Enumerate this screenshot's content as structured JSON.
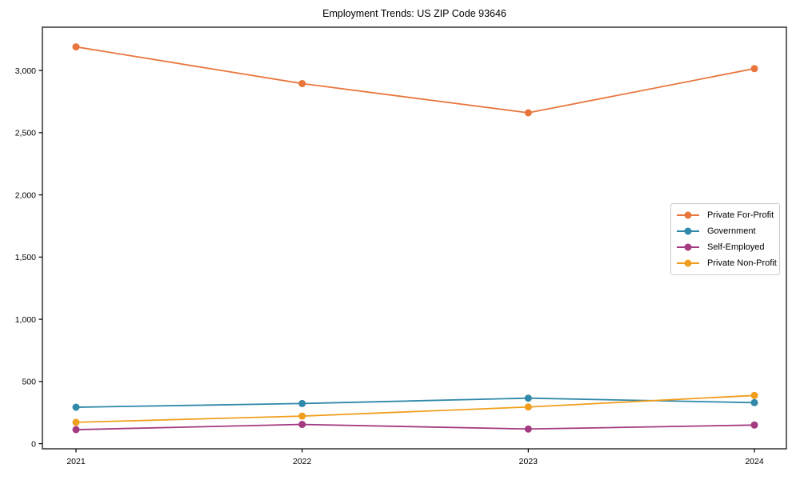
{
  "chart_data": {
    "type": "line",
    "title": "Employment Trends: US ZIP Code 93646",
    "xlabel": "",
    "ylabel": "",
    "categories": [
      "2021",
      "2022",
      "2023",
      "2024"
    ],
    "series": [
      {
        "name": "Private For-Profit",
        "color": "#e8763c",
        "values": [
          3190,
          2895,
          2660,
          3015
        ]
      },
      {
        "name": "Government",
        "color": "#3089a8",
        "values": [
          293,
          323,
          366,
          330
        ]
      },
      {
        "name": "Self-Employed",
        "color": "#a43a80",
        "values": [
          113,
          155,
          118,
          150
        ]
      },
      {
        "name": "Private Non-Profit",
        "color": "#f09e1d",
        "values": [
          172,
          222,
          295,
          388
        ]
      }
    ],
    "y_ticks": [
      {
        "value": 0,
        "label": "0"
      },
      {
        "value": 500,
        "label": "500"
      },
      {
        "value": 1000,
        "label": "1,000"
      },
      {
        "value": 1500,
        "label": "1,500"
      },
      {
        "value": 2000,
        "label": "2,000"
      },
      {
        "value": 2500,
        "label": "2,500"
      },
      {
        "value": 3000,
        "label": "3,000"
      }
    ],
    "ylim": [
      -41,
      3348
    ],
    "grid": false,
    "legend_position": "center right",
    "axis_color": "#000000",
    "background_color": "#ffffff"
  }
}
